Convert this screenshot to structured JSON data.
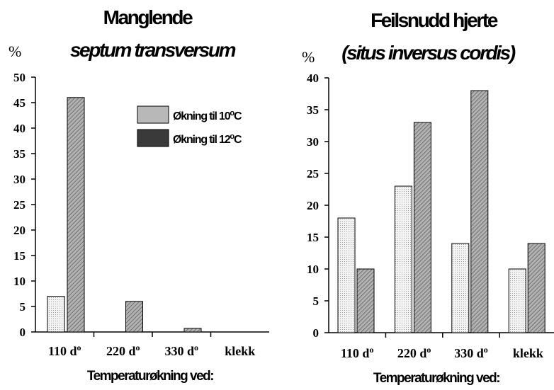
{
  "chart_data": [
    {
      "type": "bar",
      "title": "Manglende",
      "subtitle": "septum transversum",
      "ylabel": "%",
      "xlabel": "Temperaturøkning ved:",
      "categories": [
        "110 d",
        "220 d",
        "330 d",
        "klekk"
      ],
      "category_superscripts": [
        "o",
        "o",
        "o",
        ""
      ],
      "ylim": [
        0,
        50
      ],
      "yticks": [
        "0",
        "5",
        "10",
        "15",
        "20",
        "25",
        "30",
        "35",
        "40",
        "45",
        "50"
      ],
      "legend_position": "top-right",
      "series": [
        {
          "name": "Økning til 10°C",
          "color": "#f2f2f2",
          "values": [
            7,
            0,
            0,
            0
          ]
        },
        {
          "name": "Økning til 12°C",
          "color": "#a6a6a6",
          "values": [
            46,
            6,
            0.7,
            0
          ]
        }
      ]
    },
    {
      "type": "bar",
      "title": "Feilsnudd hjerte",
      "subtitle": "(situs inversus cordis)",
      "ylabel": "%",
      "xlabel": "Temperaturøkning ved:",
      "categories": [
        "110 d",
        "220 d",
        "330 d",
        "klekk"
      ],
      "category_superscripts": [
        "o",
        "o",
        "o",
        ""
      ],
      "ylim": [
        0,
        40
      ],
      "yticks": [
        "0",
        "5",
        "10",
        "15",
        "20",
        "25",
        "30",
        "35",
        "40"
      ],
      "series": [
        {
          "name": "Økning til 10°C",
          "color": "#f2f2f2",
          "values": [
            18,
            23,
            14,
            10
          ]
        },
        {
          "name": "Økning til 12°C",
          "color": "#a6a6a6",
          "values": [
            10,
            33,
            38,
            14
          ]
        }
      ]
    }
  ],
  "legend": {
    "items": [
      {
        "label": "Økning til 10",
        "sup": "o",
        "tail": "C",
        "color": "#b8b8b8"
      },
      {
        "label": "Økning til 12",
        "sup": "o",
        "tail": "C",
        "color": "#3a3a3a"
      }
    ]
  }
}
